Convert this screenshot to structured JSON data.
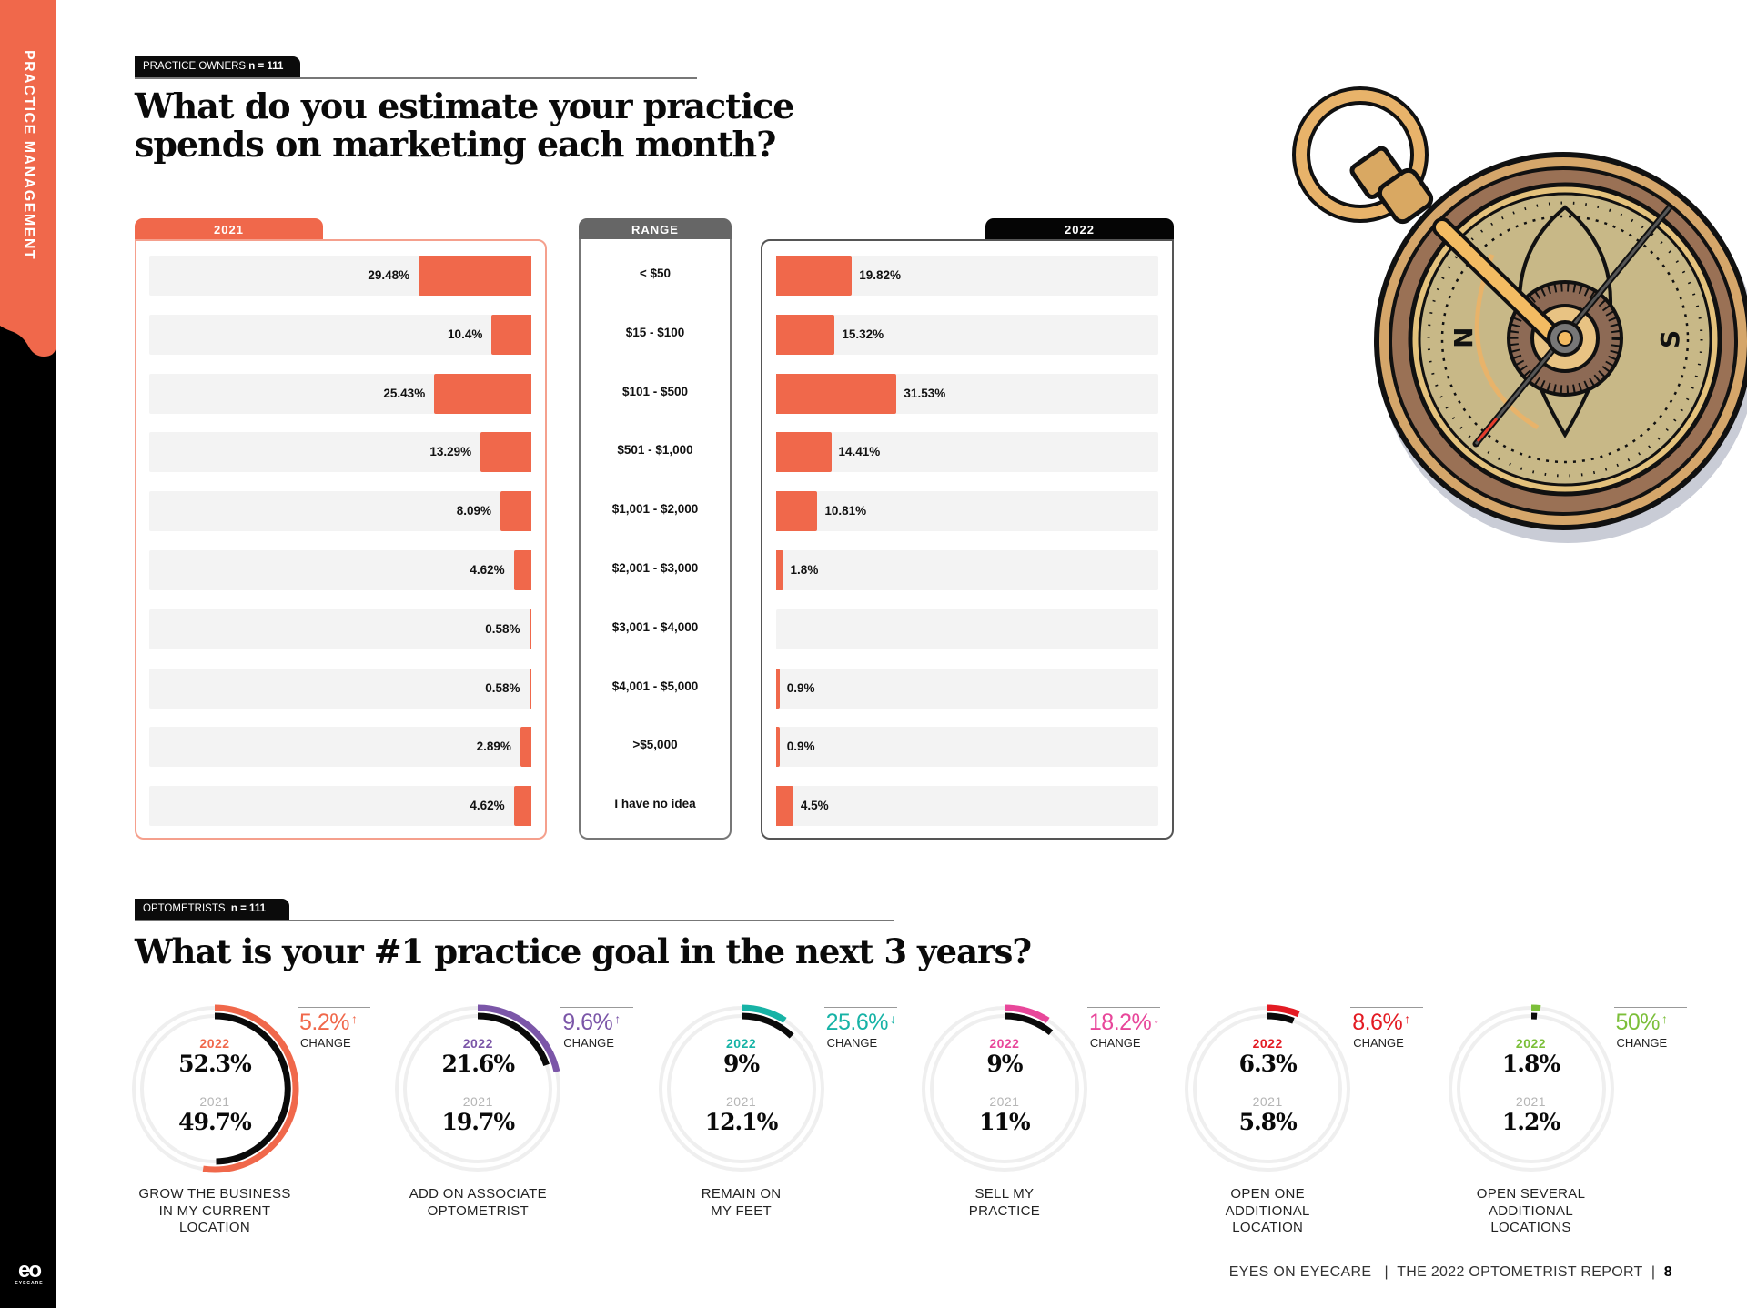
{
  "sidebar": {
    "section_label": "PRACTICE MANAGEMENT",
    "logo_mark": "eo",
    "logo_sub": "EYECARE"
  },
  "section1": {
    "tag_label": "PRACTICE OWNERS",
    "tag_n": "n = 111",
    "title_line1": "What do you estimate your practice",
    "title_line2": "spends on marketing each month?",
    "col_2021_label": "2021",
    "col_range_label": "RANGE",
    "col_2022_label": "2022"
  },
  "section2": {
    "tag_label": "OPTOMETRISTS",
    "tag_n": "n = 111",
    "title": "What is your #1 practice goal in the next 3 years?",
    "year_2022_label": "2022",
    "year_2021_label": "2021",
    "change_label": "CHANGE"
  },
  "footer": {
    "publication": "EYES ON EYECARE",
    "separator": "|",
    "report": "THE 2022 OPTOMETRIST REPORT",
    "page": "8"
  },
  "illustration": {
    "compass_n": "N",
    "compass_s": "S"
  },
  "colors": {
    "accent": "#f0684b",
    "purple": "#7b56a8",
    "teal": "#17b3a6",
    "pink": "#e8479a",
    "red": "#e31b23",
    "green": "#7cbf3a"
  },
  "chart_data": [
    {
      "type": "bar",
      "title": "What do you estimate your practice spends on marketing each month?",
      "categories": [
        "< $50",
        "$15 - $100",
        "$101 - $500",
        "$501 - $1,000",
        "$1,001 - $2,000",
        "$2,001 - $3,000",
        "$3,001 - $4,000",
        "$4,001 - $5,000",
        ">$5,000",
        "I have no idea"
      ],
      "xlim": [
        0,
        100
      ],
      "series": [
        {
          "name": "2021",
          "values": [
            29.48,
            10.4,
            25.43,
            13.29,
            8.09,
            4.62,
            0.58,
            0.58,
            2.89,
            4.62
          ],
          "labels": [
            "29.48%",
            "10.4%",
            "25.43%",
            "13.29%",
            "8.09%",
            "4.62%",
            "0.58%",
            "0.58%",
            "2.89%",
            "4.62%"
          ]
        },
        {
          "name": "2022",
          "values": [
            19.82,
            15.32,
            31.53,
            14.41,
            10.81,
            1.8,
            null,
            0.9,
            0.9,
            4.5
          ],
          "labels": [
            "19.82%",
            "15.32%",
            "31.53%",
            "14.41%",
            "10.81%",
            "1.8%",
            "",
            "0.9%",
            "0.9%",
            "4.5%"
          ]
        }
      ]
    },
    {
      "type": "pie",
      "title": "What is your #1 practice goal in the next 3 years?",
      "categories": [
        "GROW THE BUSINESS IN MY CURRENT LOCATION",
        "ADD ON ASSOCIATE OPTOMETRIST",
        "REMAIN ON MY FEET",
        "SELL MY PRACTICE",
        "OPEN ONE ADDITIONAL LOCATION",
        "OPEN SEVERAL ADDITIONAL LOCATIONS"
      ],
      "items": [
        {
          "label_lines": [
            "GROW THE BUSINESS",
            "IN MY CURRENT",
            "LOCATION"
          ],
          "v2022": 52.3,
          "v2021": 49.7,
          "v2022_label": "52.3%",
          "v2021_label": "49.7%",
          "change": "5.2%",
          "direction": "up",
          "arrow": "↑",
          "color": "#f0684b"
        },
        {
          "label_lines": [
            "ADD ON ASSOCIATE",
            "OPTOMETRIST"
          ],
          "v2022": 21.6,
          "v2021": 19.7,
          "v2022_label": "21.6%",
          "v2021_label": "19.7%",
          "change": "9.6%",
          "direction": "up",
          "arrow": "↑",
          "color": "#7b56a8"
        },
        {
          "label_lines": [
            "REMAIN ON",
            "MY FEET"
          ],
          "v2022": 9,
          "v2021": 12.1,
          "v2022_label": "9%",
          "v2021_label": "12.1%",
          "change": "25.6%",
          "direction": "down",
          "arrow": "↓",
          "color": "#17b3a6"
        },
        {
          "label_lines": [
            "SELL MY",
            "PRACTICE"
          ],
          "v2022": 9,
          "v2021": 11,
          "v2022_label": "9%",
          "v2021_label": "11%",
          "change": "18.2%",
          "direction": "down",
          "arrow": "↓",
          "color": "#e8479a"
        },
        {
          "label_lines": [
            "OPEN ONE",
            "ADDITIONAL",
            "LOCATION"
          ],
          "v2022": 6.3,
          "v2021": 5.8,
          "v2022_label": "6.3%",
          "v2021_label": "5.8%",
          "change": "8.6%",
          "direction": "up",
          "arrow": "↑",
          "color": "#e31b23"
        },
        {
          "label_lines": [
            "OPEN SEVERAL",
            "ADDITIONAL",
            "LOCATIONS"
          ],
          "v2022": 1.8,
          "v2021": 1.2,
          "v2022_label": "1.8%",
          "v2021_label": "1.2%",
          "change": "50%",
          "direction": "up",
          "arrow": "↑",
          "color": "#7cbf3a"
        }
      ]
    }
  ]
}
